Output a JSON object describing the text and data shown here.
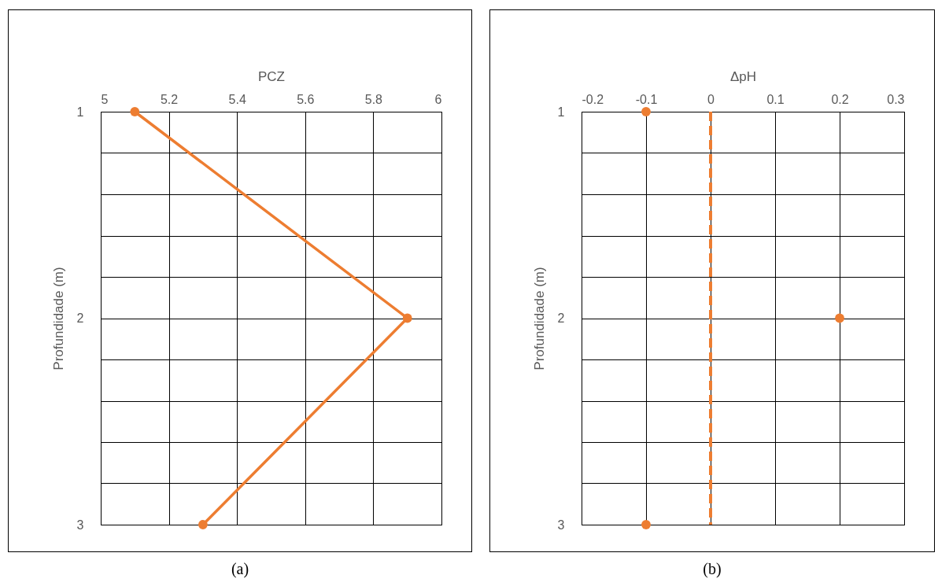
{
  "chart_data": [
    {
      "type": "line",
      "xlabel": "PCZ",
      "ylabel": "Profundidade (m)",
      "x": [
        5.1,
        5.9,
        5.3
      ],
      "series": [
        {
          "color": "#ed7d31",
          "values": [
            1,
            2,
            3
          ]
        }
      ],
      "xlim": [
        5,
        6
      ],
      "xticks": [
        5,
        5.2,
        5.4,
        5.6,
        5.8,
        6
      ],
      "ylim": [
        3,
        1
      ],
      "yticks": [
        1,
        {
          "value": 1.2,
          "label": null
        },
        {
          "value": 1.4,
          "label": null
        },
        {
          "value": 1.6,
          "label": null
        },
        {
          "value": 1.8,
          "label": null
        },
        2,
        {
          "value": 2.2,
          "label": null
        },
        {
          "value": 2.4,
          "label": null
        },
        {
          "value": 2.6,
          "label": null
        },
        {
          "value": 2.8,
          "label": null
        },
        3
      ],
      "grid": true,
      "marker": "circle",
      "line_style": "solid",
      "annotations": [
        "(a)"
      ]
    },
    {
      "type": "scatter",
      "xlabel": "ΔpH",
      "ylabel": "Profundidade (m)",
      "x": [
        -0.1,
        0.2,
        -0.1
      ],
      "series": [
        {
          "color": "#ed7d31",
          "values": [
            1,
            2,
            3
          ]
        }
      ],
      "xlim": [
        -0.2,
        0.3
      ],
      "xticks": [
        -0.2,
        -0.1,
        0,
        0.1,
        0.2,
        0.3
      ],
      "ylim": [
        3,
        1
      ],
      "yticks": [
        1,
        {
          "value": 1.2,
          "label": null
        },
        {
          "value": 1.4,
          "label": null
        },
        {
          "value": 1.6,
          "label": null
        },
        {
          "value": 1.8,
          "label": null
        },
        2,
        {
          "value": 2.2,
          "label": null
        },
        {
          "value": 2.4,
          "label": null
        },
        {
          "value": 2.6,
          "label": null
        },
        {
          "value": 2.8,
          "label": null
        },
        3
      ],
      "grid": true,
      "marker": "circle",
      "ref_lines": [
        {
          "axis": "x",
          "value": 0,
          "color": "#ed7d31",
          "line_style": "dashed"
        }
      ],
      "annotations": [
        "(b)"
      ]
    }
  ]
}
